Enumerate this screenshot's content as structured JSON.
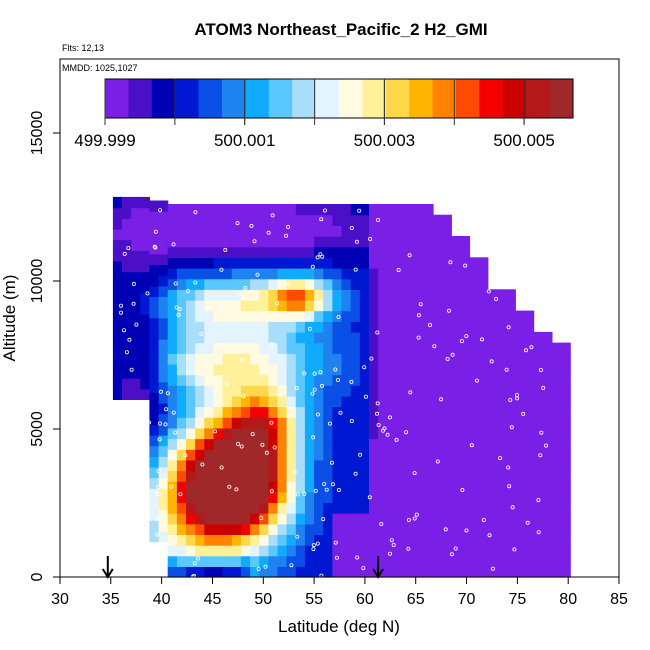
{
  "chart_data": {
    "type": "heatmap",
    "title": "ATOM3 Northeast_Pacific_2 H2_GMI",
    "flights_note": "Flts: 12,13",
    "dates_note": "MMDD: 1025,1027",
    "xlabel": "Latitude (deg N)",
    "ylabel": "Altitude (m)",
    "xlim": [
      30,
      85
    ],
    "ylim": [
      0,
      17500
    ],
    "x_ticks": [
      "30",
      "35",
      "40",
      "45",
      "50",
      "55",
      "60",
      "65",
      "70",
      "75",
      "80",
      "85"
    ],
    "y_ticks": [
      "0",
      "5000",
      "10000",
      "15000"
    ],
    "colorbar": {
      "min": 499.999,
      "max": 500.0057,
      "tick_labels": [
        "499.999",
        "500.001",
        "500.003",
        "500.005"
      ],
      "tick_values": [
        499.999,
        500.001,
        500.003,
        500.005
      ],
      "colors": [
        "#7a1fe6",
        "#4b0fc8",
        "#0000b4",
        "#0018d2",
        "#0a50e6",
        "#1e82f0",
        "#10aaff",
        "#5ac8ff",
        "#a8defa",
        "#e4f4ff",
        "#fffae0",
        "#fff09a",
        "#ffd84a",
        "#ffb400",
        "#ff8200",
        "#ff4a00",
        "#f50000",
        "#cd0000",
        "#b41818",
        "#a02828"
      ]
    },
    "markers": [
      {
        "latitude": 34.7,
        "symbol": "down-arrow"
      },
      {
        "latitude": 61.3,
        "symbol": "down-arrow"
      }
    ],
    "field": {
      "lat_range": [
        35,
        80
      ],
      "alt_range": [
        0,
        12500
      ],
      "value_range": "499.999–500.0057",
      "description_of_regions": [
        {
          "lat": [
            41,
            50
          ],
          "alt": [
            1500,
            5000
          ],
          "level": "high"
        },
        {
          "lat": [
            50,
            56
          ],
          "alt": [
            9000,
            10000
          ],
          "level": "mid-high"
        },
        {
          "lat": [
            60,
            80
          ],
          "alt": [
            0,
            8000
          ],
          "level": "low"
        }
      ]
    }
  }
}
